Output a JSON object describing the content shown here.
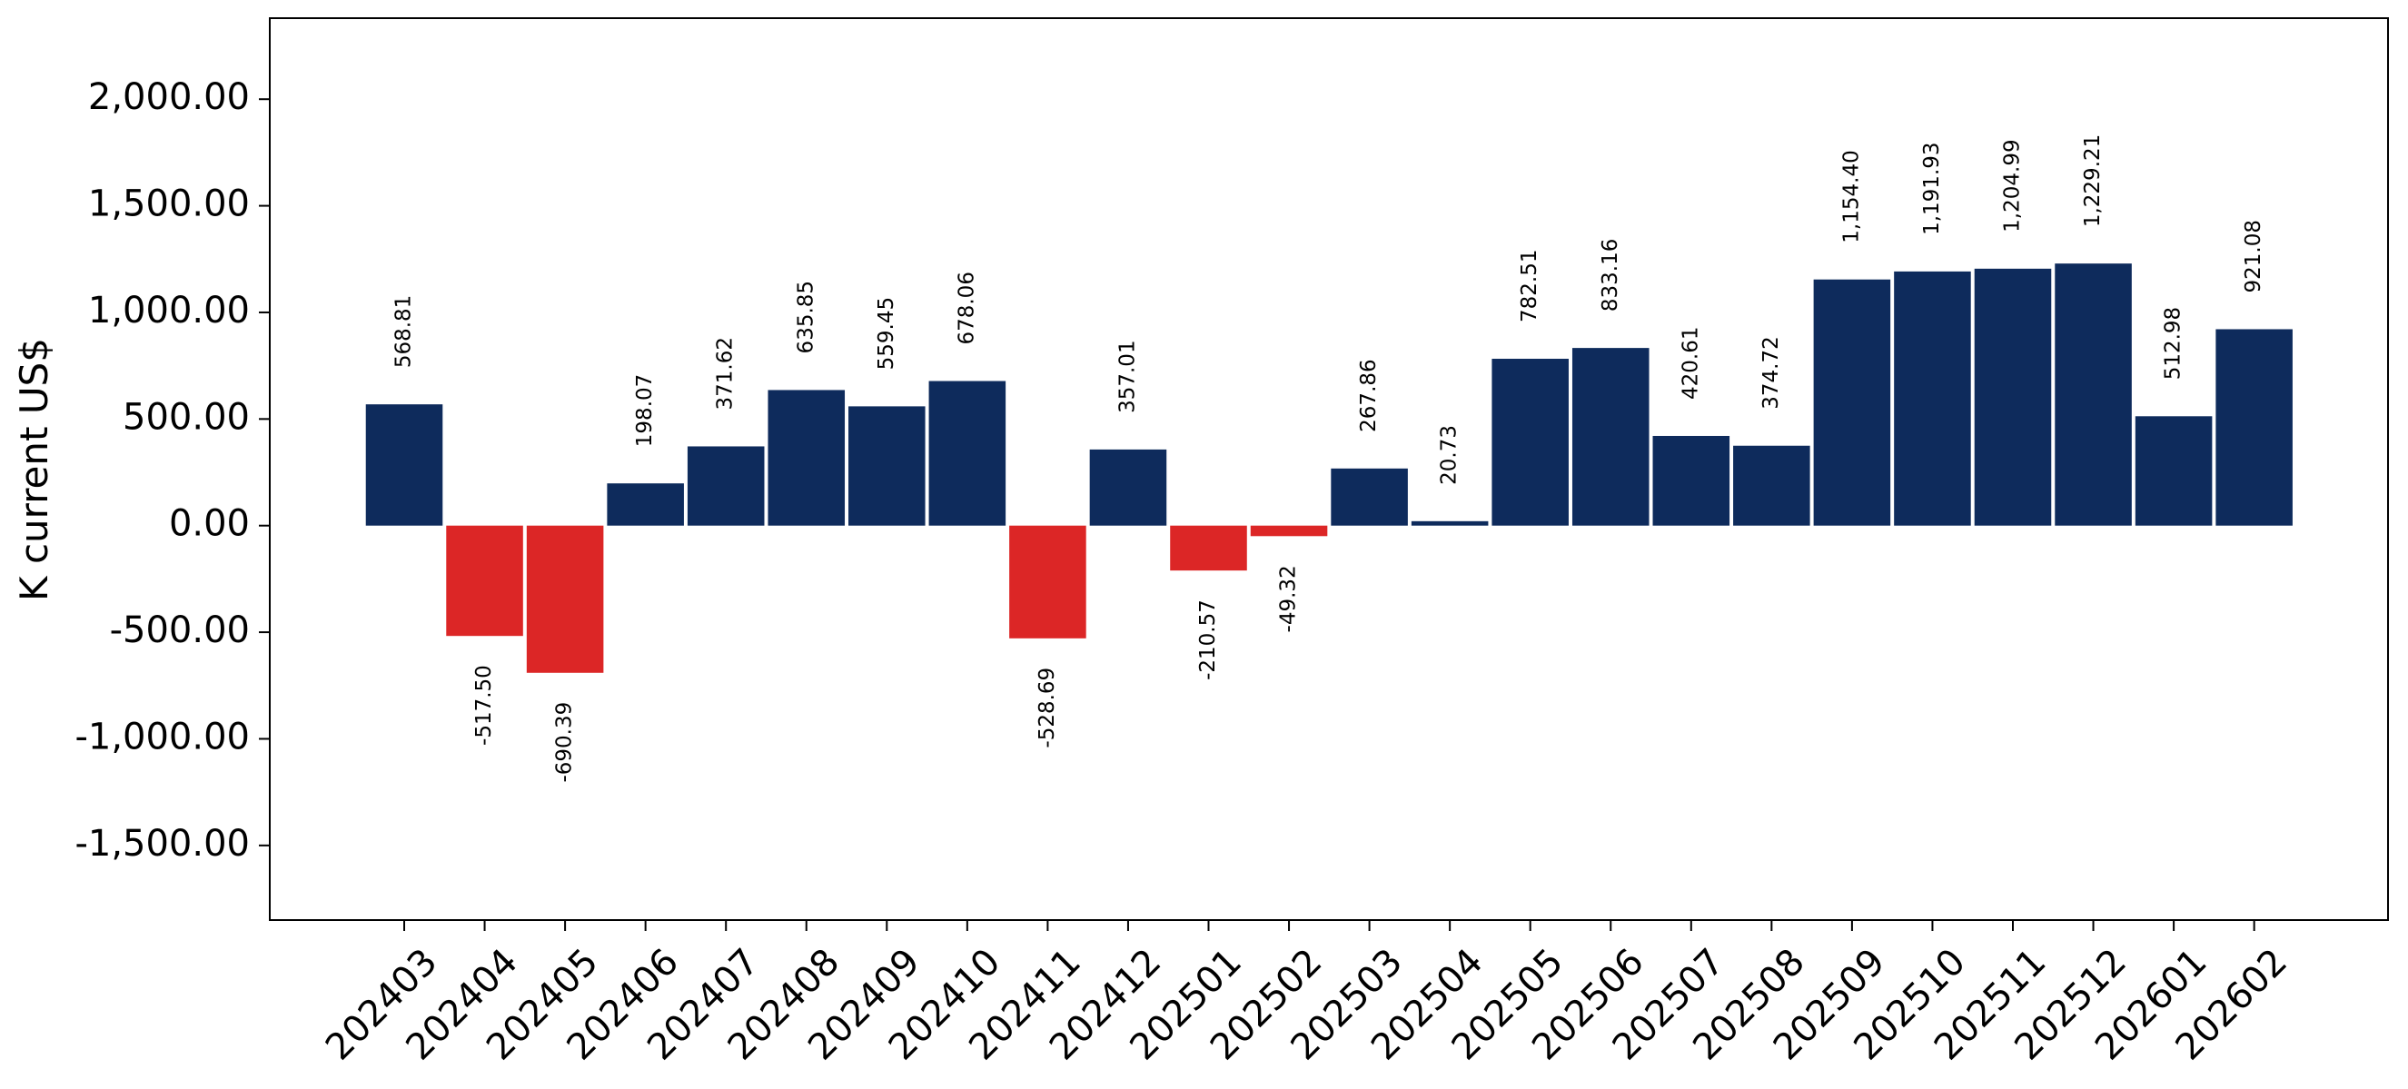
{
  "chart_data": {
    "type": "bar",
    "title": "",
    "xlabel": "",
    "ylabel": "K current US$",
    "ylim": [
      -1850,
      2380
    ],
    "yticks": [
      -1500,
      -1000,
      -500,
      0,
      500,
      1000,
      1500,
      2000
    ],
    "ytick_labels": [
      "-1,500.00",
      "-1,000.00",
      "-500.00",
      "0.00",
      "500.00",
      "1,000.00",
      "1,500.00",
      "2,000.00"
    ],
    "categories": [
      "202403",
      "202404",
      "202405",
      "202406",
      "202407",
      "202408",
      "202409",
      "202410",
      "202411",
      "202412",
      "202501",
      "202502",
      "202503",
      "202504",
      "202505",
      "202506",
      "202507",
      "202508",
      "202509",
      "202510",
      "202511",
      "202512",
      "202601",
      "202602"
    ],
    "values": [
      568.81,
      -517.5,
      -690.39,
      198.07,
      371.62,
      635.85,
      559.45,
      678.06,
      -528.69,
      357.01,
      -210.57,
      -49.32,
      267.86,
      20.73,
      782.51,
      833.16,
      420.61,
      374.72,
      1154.4,
      1191.93,
      1204.99,
      1229.21,
      512.98,
      921.08
    ],
    "value_labels": [
      "568.81",
      "-517.50",
      "-690.39",
      "198.07",
      "371.62",
      "635.85",
      "559.45",
      "678.06",
      "-528.69",
      "357.01",
      "-210.57",
      "-49.32",
      "267.86",
      "20.73",
      "782.51",
      "833.16",
      "420.61",
      "374.72",
      "1,154.40",
      "1,191.93",
      "1,204.99",
      "1,229.21",
      "512.98",
      "921.08"
    ],
    "colors": {
      "positive": "#0e2b5c",
      "negative": "#dc2626"
    },
    "grid": false,
    "legend": "none"
  }
}
